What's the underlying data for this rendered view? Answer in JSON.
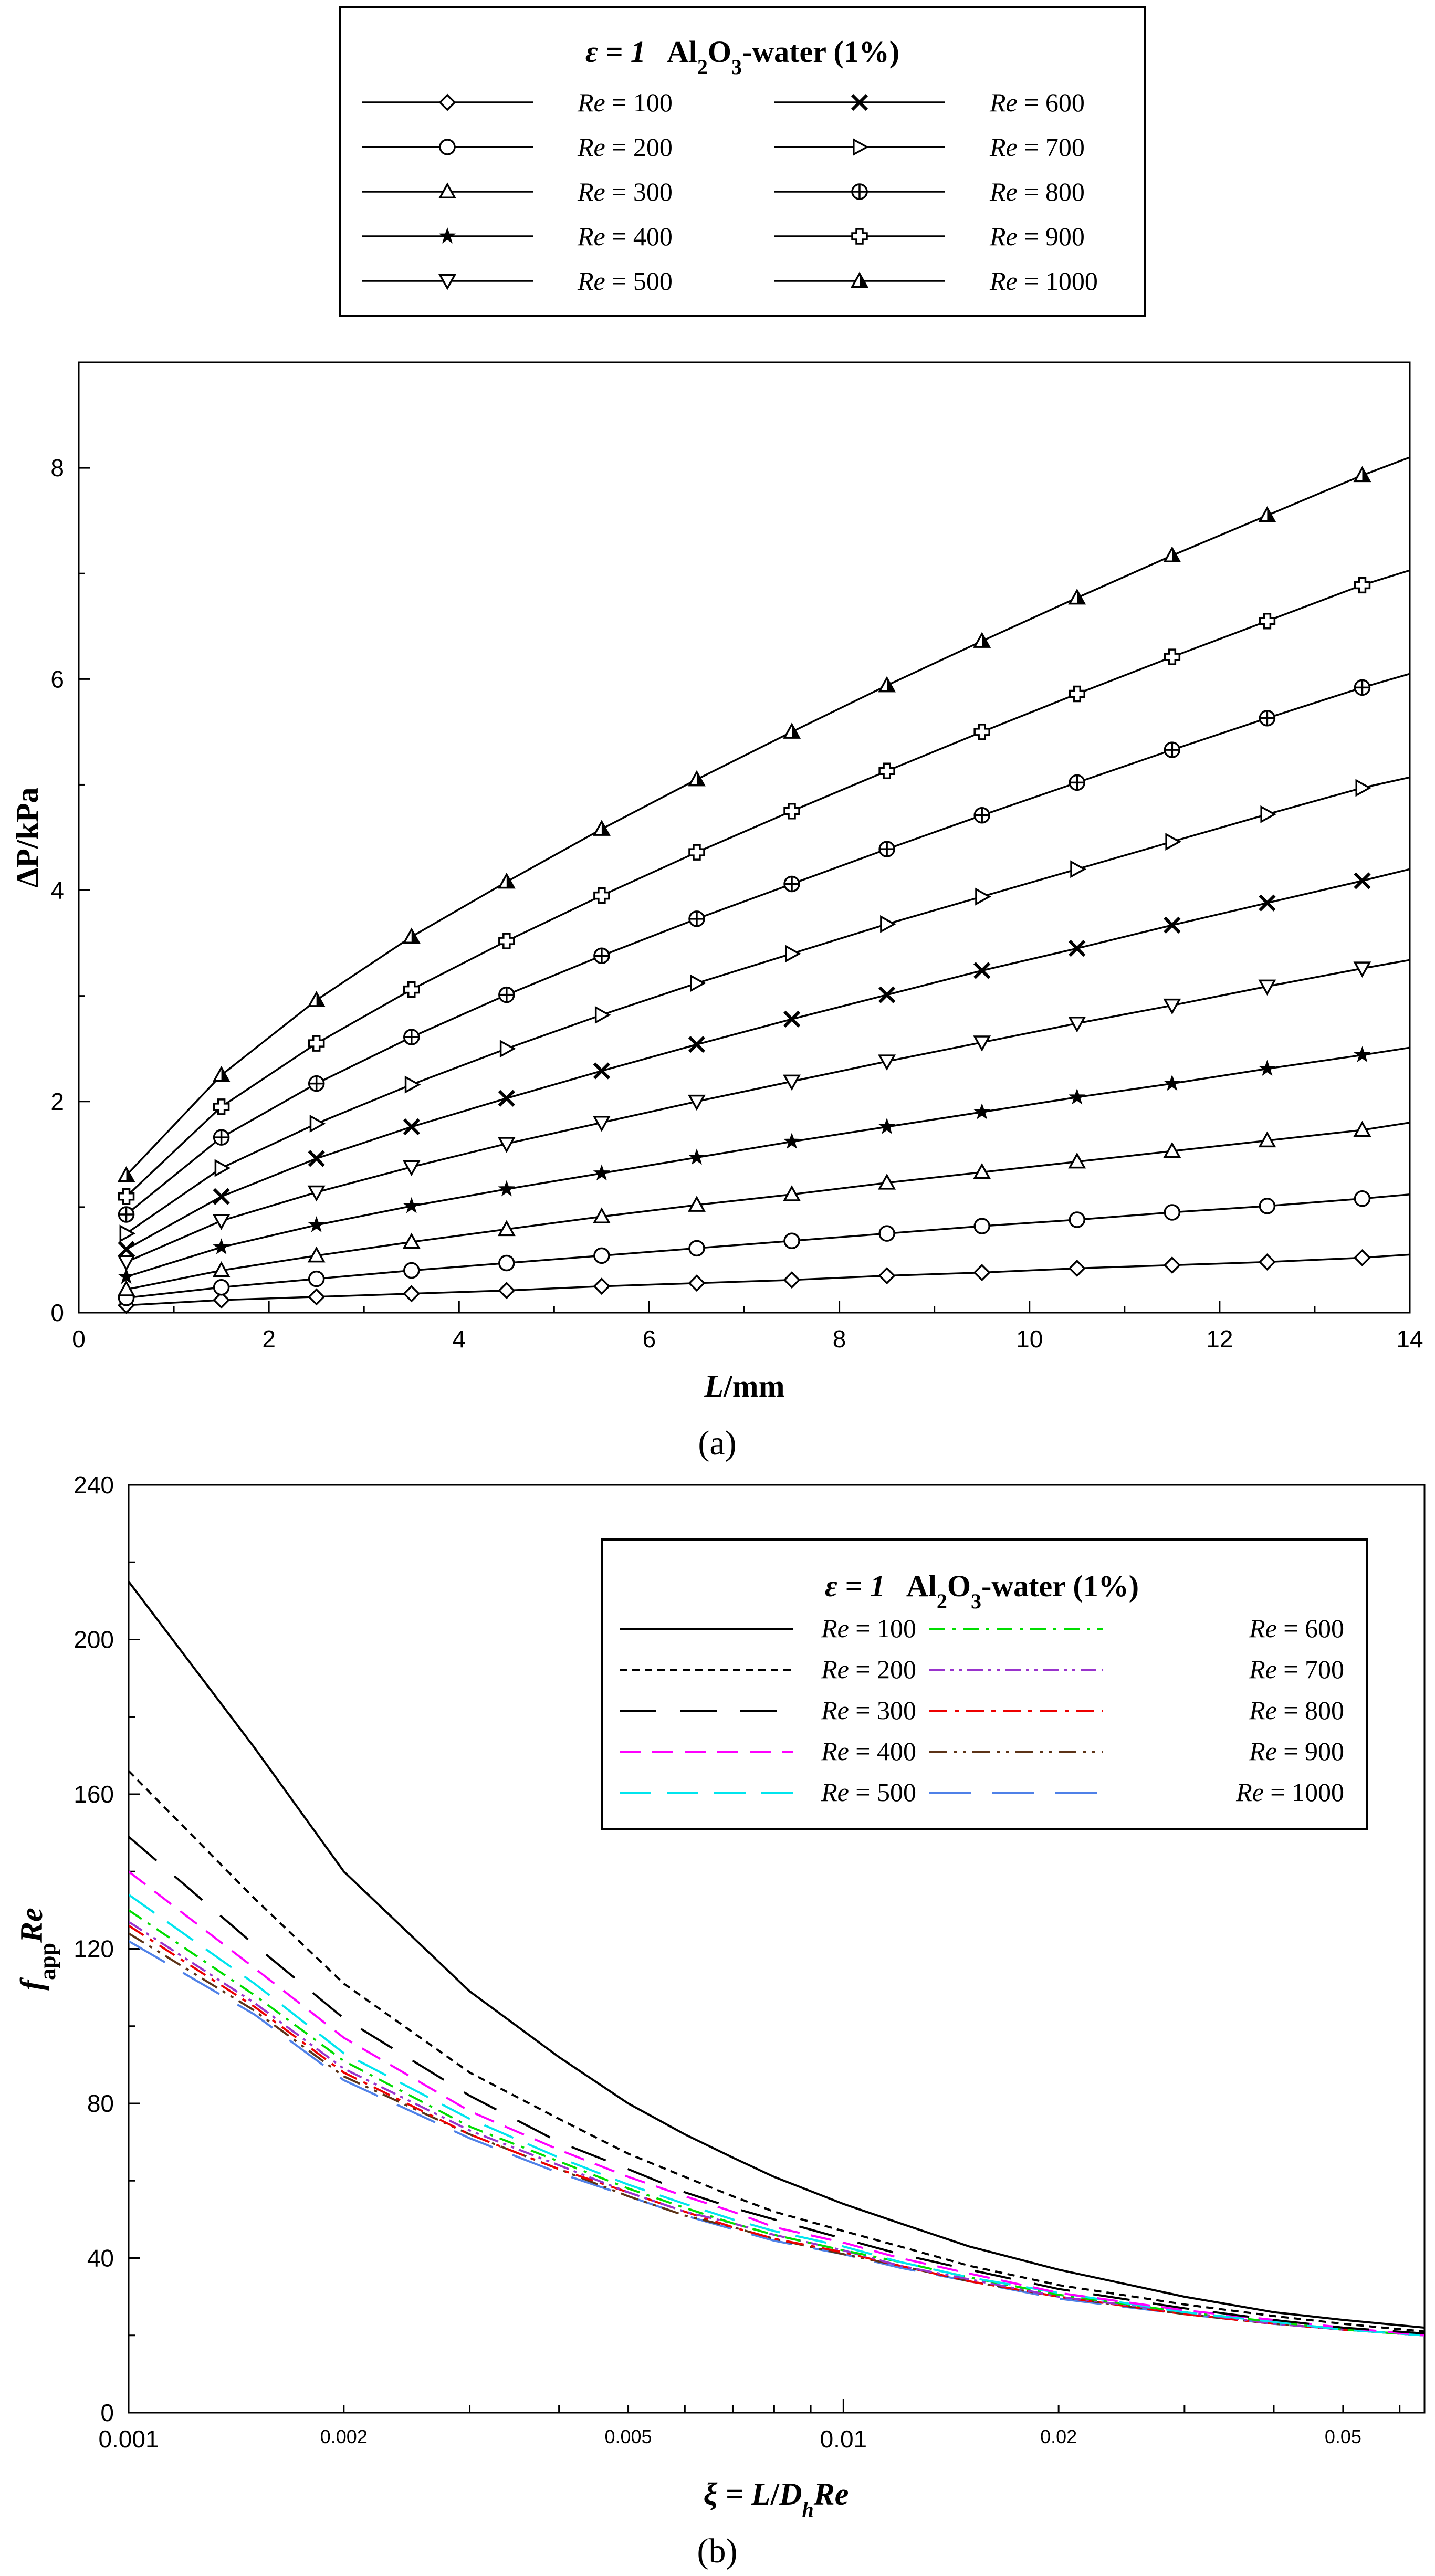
{
  "chart_data": [
    {
      "id": "a",
      "type": "line",
      "panel_label": "(a)",
      "xlabel": "L/mm",
      "xlabel_parts": [
        "L",
        "/mm"
      ],
      "ylabel": "ΔP/kPa",
      "xlim": [
        0,
        14
      ],
      "ylim": [
        0,
        9
      ],
      "xticks": [
        "0",
        "2",
        "4",
        "6",
        "8",
        "10",
        "12",
        "14"
      ],
      "yticks": [
        "0",
        "2",
        "4",
        "6",
        "8"
      ],
      "legend": {
        "placement": "above",
        "title": "ε = 1 Al2O3-water (1%)",
        "title_eps": "ε = 1",
        "title_al": "Al",
        "title_sub2": "2",
        "title_o": "O",
        "title_sub3": "3",
        "title_rest": "-water (1%)"
      },
      "x": [
        0.5,
        1.5,
        2.5,
        3.5,
        4.5,
        5.5,
        6.5,
        7.5,
        8.5,
        9.5,
        10.5,
        11.5,
        12.5,
        13.5
      ],
      "series": [
        {
          "name": "Re = 100",
          "re": "100",
          "marker": "diamond",
          "values": [
            0.07,
            0.12,
            0.15,
            0.18,
            0.21,
            0.25,
            0.28,
            0.31,
            0.35,
            0.38,
            0.42,
            0.45,
            0.48,
            0.52
          ],
          "end": 0.55
        },
        {
          "name": "Re = 200",
          "re": "200",
          "marker": "circle",
          "values": [
            0.14,
            0.24,
            0.32,
            0.4,
            0.47,
            0.54,
            0.61,
            0.68,
            0.75,
            0.82,
            0.88,
            0.95,
            1.01,
            1.08
          ],
          "end": 1.12
        },
        {
          "name": "Re = 300",
          "re": "300",
          "marker": "triangle-up",
          "values": [
            0.22,
            0.4,
            0.54,
            0.67,
            0.79,
            0.91,
            1.02,
            1.12,
            1.23,
            1.33,
            1.43,
            1.53,
            1.63,
            1.73
          ],
          "end": 1.8
        },
        {
          "name": "Re = 400",
          "re": "400",
          "marker": "star",
          "values": [
            0.34,
            0.62,
            0.83,
            1.01,
            1.17,
            1.32,
            1.47,
            1.62,
            1.76,
            1.9,
            2.04,
            2.17,
            2.31,
            2.44
          ],
          "end": 2.51
        },
        {
          "name": "Re = 500",
          "re": "500",
          "marker": "triangle-down",
          "values": [
            0.48,
            0.87,
            1.14,
            1.38,
            1.6,
            1.8,
            2.0,
            2.19,
            2.38,
            2.56,
            2.74,
            2.91,
            3.09,
            3.26
          ],
          "end": 3.34
        },
        {
          "name": "Re = 600",
          "re": "600",
          "marker": "x",
          "values": [
            0.6,
            1.1,
            1.46,
            1.76,
            2.03,
            2.29,
            2.54,
            2.78,
            3.01,
            3.24,
            3.45,
            3.67,
            3.88,
            4.09
          ],
          "end": 4.2
        },
        {
          "name": "Re = 700",
          "re": "700",
          "marker": "triangle-right",
          "values": [
            0.75,
            1.37,
            1.79,
            2.16,
            2.5,
            2.82,
            3.12,
            3.4,
            3.68,
            3.94,
            4.2,
            4.46,
            4.72,
            4.97
          ],
          "end": 5.07
        },
        {
          "name": "Re = 800",
          "re": "800",
          "marker": "circle-plus",
          "values": [
            0.93,
            1.66,
            2.17,
            2.61,
            3.01,
            3.38,
            3.73,
            4.06,
            4.39,
            4.71,
            5.02,
            5.33,
            5.63,
            5.92
          ],
          "end": 6.05
        },
        {
          "name": "Re = 900",
          "re": "900",
          "marker": "bold-plus",
          "values": [
            1.1,
            1.95,
            2.55,
            3.06,
            3.52,
            3.95,
            4.36,
            4.75,
            5.13,
            5.5,
            5.86,
            6.21,
            6.55,
            6.89
          ],
          "end": 7.03
        },
        {
          "name": "Re = 1000",
          "re": "1000",
          "marker": "filled-triangle",
          "values": [
            1.3,
            2.25,
            2.96,
            3.56,
            4.08,
            4.58,
            5.05,
            5.5,
            5.94,
            6.36,
            6.77,
            7.17,
            7.55,
            7.93
          ],
          "end": 8.1
        }
      ]
    },
    {
      "id": "b",
      "type": "line",
      "panel_label": "(b)",
      "xscale": "log",
      "xlabel": "ξ = L/DhRe",
      "xlabel_xi": "ξ = ",
      "xlabel_L": "L",
      "xlabel_slash": "/",
      "xlabel_D": "D",
      "xlabel_h": "h",
      "xlabel_Re": "Re",
      "ylabel": "fappRe",
      "ylabel_f": "f",
      "ylabel_app": "app",
      "ylabel_re": "Re",
      "xlim": [
        0.001,
        0.065
      ],
      "ylim": [
        0,
        240
      ],
      "yticks": [
        "0",
        "40",
        "80",
        "120",
        "160",
        "200",
        "240"
      ],
      "xticks_major": [
        {
          "value": 0.001,
          "label": "0.001"
        },
        {
          "value": 0.01,
          "label": "0.01"
        }
      ],
      "xticks_minor_labeled": [
        {
          "value": 0.002,
          "label": "0.002"
        },
        {
          "value": 0.005,
          "label": "0.005"
        },
        {
          "value": 0.02,
          "label": "0.02"
        },
        {
          "value": 0.05,
          "label": "0.05"
        }
      ],
      "legend": {
        "placement": "top-right",
        "title": "ε = 1 Al2O3-water (1%)",
        "title_eps": "ε = 1",
        "title_al": "Al",
        "title_sub2": "2",
        "title_o": "O",
        "title_sub3": "3",
        "title_rest": "-water (1%)"
      },
      "x": [
        0.001,
        0.0015,
        0.002,
        0.003,
        0.004,
        0.005,
        0.006,
        0.007,
        0.008,
        0.01,
        0.012,
        0.015,
        0.02,
        0.03,
        0.04,
        0.05,
        0.065
      ],
      "series": [
        {
          "name": "Re = 100",
          "re": "100",
          "color": "#000000",
          "dash": "",
          "values": [
            215,
            172,
            140,
            109,
            92,
            80,
            72,
            66,
            61,
            54,
            49,
            43,
            37,
            30,
            26,
            24,
            22
          ]
        },
        {
          "name": "Re = 200",
          "re": "200",
          "color": "#000000",
          "dash": "14 10",
          "values": [
            166,
            133,
            111,
            88,
            76,
            67,
            61,
            56,
            52,
            47,
            43,
            38,
            33,
            28,
            25,
            23,
            21
          ]
        },
        {
          "name": "Re = 300",
          "re": "300",
          "color": "#000000",
          "dash": "70 45",
          "values": [
            149,
            121,
            102,
            82,
            70,
            63,
            57,
            53,
            50,
            45,
            41,
            37,
            32,
            27,
            24,
            22,
            20.5
          ]
        },
        {
          "name": "Re = 400",
          "re": "400",
          "color": "#ff00ff",
          "dash": "40 22",
          "values": [
            140,
            115,
            97,
            78,
            68,
            61,
            56,
            52,
            48,
            44,
            40,
            36,
            31,
            26.5,
            24,
            22,
            20
          ]
        },
        {
          "name": "Re = 500",
          "re": "500",
          "color": "#00e5ee",
          "dash": "60 30",
          "values": [
            134,
            111,
            93,
            76,
            66,
            59,
            54,
            50,
            47,
            43,
            39,
            35,
            31,
            26,
            23.5,
            21.5,
            20
          ]
        },
        {
          "name": "Re = 600",
          "re": "600",
          "color": "#00dd00",
          "dash": "30 14 6 14",
          "values": [
            130,
            108,
            91,
            74,
            65,
            58,
            53,
            49,
            46,
            42,
            39,
            35,
            30.5,
            26,
            23.5,
            21.5,
            20
          ]
        },
        {
          "name": "Re = 700",
          "re": "700",
          "color": "#9933cc",
          "dash": "30 10 6 10 6 10",
          "values": [
            127,
            106,
            89,
            73,
            64,
            57,
            52,
            49,
            46,
            42,
            38,
            34.5,
            30,
            26,
            23,
            21.5,
            20
          ]
        },
        {
          "name": "Re = 800",
          "re": "800",
          "color": "#ee0000",
          "dash": "34 14 8 14",
          "values": [
            126,
            105,
            88,
            72,
            63,
            57,
            52,
            48,
            45,
            41.5,
            38,
            34,
            30,
            25.5,
            23,
            21.5,
            20
          ]
        },
        {
          "name": "Re = 900",
          "re": "900",
          "color": "#5c3317",
          "dash": "34 12 6 12 6 12",
          "values": [
            124,
            104,
            87,
            72,
            63,
            56,
            51,
            48,
            45,
            41,
            38,
            34,
            30,
            25.5,
            23,
            21.5,
            20
          ]
        },
        {
          "name": "Re = 1000",
          "re": "1000",
          "color": "#4f81e8",
          "dash": "80 40",
          "values": [
            122,
            103,
            86,
            71,
            62,
            56,
            51,
            47.5,
            44.5,
            41,
            37.5,
            34,
            29.5,
            25.5,
            23,
            21.5,
            20
          ]
        }
      ]
    }
  ]
}
